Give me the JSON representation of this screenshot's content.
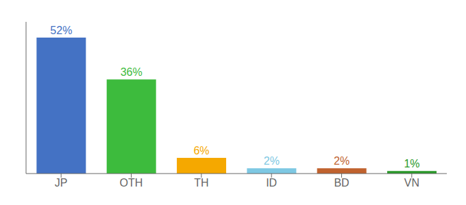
{
  "chart_data": {
    "type": "bar",
    "categories": [
      "JP",
      "OTH",
      "TH",
      "ID",
      "BD",
      "VN"
    ],
    "values": [
      52,
      36,
      6,
      2,
      2,
      1
    ],
    "value_labels": [
      "52%",
      "36%",
      "6%",
      "2%",
      "2%",
      "1%"
    ],
    "data_labels": true,
    "colors": [
      "#4472c4",
      "#3dbb3d",
      "#f5a800",
      "#7ec8e3",
      "#c0622e",
      "#2a9a2a"
    ],
    "ylim": [
      0,
      58
    ],
    "tick_labels": "x",
    "grid": false
  }
}
